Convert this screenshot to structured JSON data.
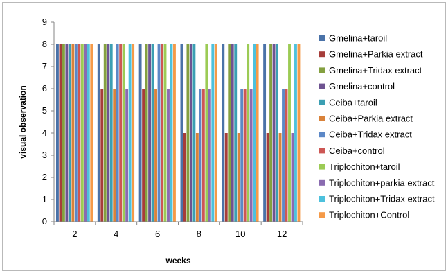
{
  "chart_data": {
    "type": "bar",
    "title": "",
    "xlabel": "weeks",
    "ylabel": "visual observation",
    "ylim": [
      0,
      9
    ],
    "yticks": [
      0,
      1,
      2,
      3,
      4,
      5,
      6,
      7,
      8,
      9
    ],
    "categories": [
      "2",
      "4",
      "6",
      "8",
      "10",
      "12"
    ],
    "grid": false,
    "legend_position": "right",
    "series": [
      {
        "name": "Gmelina+taroil",
        "color": "#4a72a8",
        "values": [
          8,
          8,
          8,
          8,
          8,
          8
        ]
      },
      {
        "name": "Gmelina+Parkia extract",
        "color": "#a63d3a",
        "values": [
          8,
          6,
          6,
          4,
          4,
          4
        ]
      },
      {
        "name": "Gmelina+Tridax extract",
        "color": "#84a040",
        "values": [
          8,
          8,
          8,
          8,
          8,
          8
        ]
      },
      {
        "name": "Gmelina+control",
        "color": "#6e5391",
        "values": [
          8,
          8,
          8,
          8,
          8,
          8
        ]
      },
      {
        "name": "Ceiba+taroil",
        "color": "#3b9fb3",
        "values": [
          8,
          8,
          8,
          8,
          8,
          8
        ]
      },
      {
        "name": "Ceiba+Parkia extract",
        "color": "#d9823a",
        "values": [
          8,
          6,
          6,
          4,
          4,
          4
        ]
      },
      {
        "name": "Ceiba+Tridax extract",
        "color": "#5c88c7",
        "values": [
          8,
          8,
          8,
          6,
          6,
          6
        ]
      },
      {
        "name": "Ceiba+control",
        "color": "#cd5754",
        "values": [
          8,
          8,
          8,
          6,
          6,
          6
        ]
      },
      {
        "name": "Triplochiton+taroil",
        "color": "#9ccb55",
        "values": [
          8,
          8,
          8,
          8,
          8,
          8
        ]
      },
      {
        "name": "Triplochiton+parkia extract",
        "color": "#8a6bb0",
        "values": [
          8,
          6,
          6,
          6,
          6,
          4
        ]
      },
      {
        "name": "Triplochiton+Tridax extract",
        "color": "#4dc1dd",
        "values": [
          8,
          8,
          8,
          8,
          8,
          8
        ]
      },
      {
        "name": "Triplochiton+Control",
        "color": "#f59a48",
        "values": [
          8,
          8,
          8,
          8,
          8,
          8
        ]
      }
    ]
  }
}
